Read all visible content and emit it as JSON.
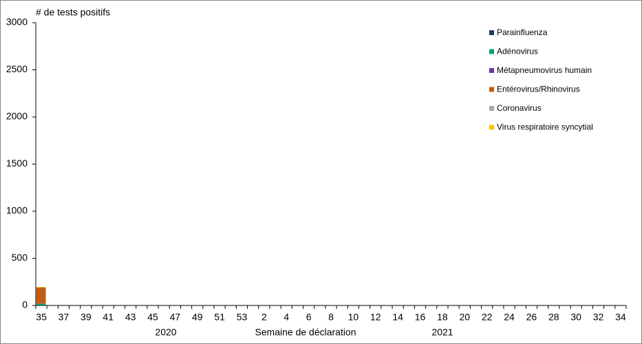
{
  "chart_data": {
    "type": "bar",
    "stacked": true,
    "y_axis_title": "# de tests positifs",
    "x_axis_title": "Semaine de déclaration",
    "x_groups": [
      "2020",
      "2021"
    ],
    "categories": [
      "35",
      null,
      "37",
      null,
      "39",
      null,
      "41",
      null,
      "43",
      null,
      "45",
      null,
      "47",
      null,
      "49",
      null,
      "51",
      null,
      "53",
      null,
      "2",
      null,
      "4",
      null,
      "6",
      null,
      "8",
      null,
      "10",
      null,
      "12",
      null,
      "14",
      null,
      "16",
      null,
      "18",
      null,
      "20",
      null,
      "22",
      null,
      "24",
      null,
      "26",
      null,
      "28",
      null,
      "30",
      null,
      "32",
      null,
      "34"
    ],
    "series": [
      {
        "name": "Parainfluenza",
        "color": "#1f3864",
        "values": [
          2,
          null,
          null,
          null,
          null,
          null,
          null,
          null,
          null,
          null,
          null,
          null,
          null,
          null,
          null,
          null,
          null,
          null,
          null,
          null,
          null,
          null,
          null,
          null,
          null,
          null,
          null,
          null,
          null,
          null,
          null,
          null,
          null,
          null,
          null,
          null,
          null,
          null,
          null,
          null,
          null,
          null,
          null,
          null,
          null,
          null,
          null,
          null,
          null,
          null,
          null,
          null,
          null
        ]
      },
      {
        "name": "Adénovirus",
        "color": "#00a070",
        "values": [
          15,
          null,
          null,
          null,
          null,
          null,
          null,
          null,
          null,
          null,
          null,
          null,
          null,
          null,
          null,
          null,
          null,
          null,
          null,
          null,
          null,
          null,
          null,
          null,
          null,
          null,
          null,
          null,
          null,
          null,
          null,
          null,
          null,
          null,
          null,
          null,
          null,
          null,
          null,
          null,
          null,
          null,
          null,
          null,
          null,
          null,
          null,
          null,
          null,
          null,
          null,
          null,
          null
        ]
      },
      {
        "name": "Métapneumovirus humain",
        "color": "#7030a0",
        "values": [
          3,
          null,
          null,
          null,
          null,
          null,
          null,
          null,
          null,
          null,
          null,
          null,
          null,
          null,
          null,
          null,
          null,
          null,
          null,
          null,
          null,
          null,
          null,
          null,
          null,
          null,
          null,
          null,
          null,
          null,
          null,
          null,
          null,
          null,
          null,
          null,
          null,
          null,
          null,
          null,
          null,
          null,
          null,
          null,
          null,
          null,
          null,
          null,
          null,
          null,
          null,
          null,
          null
        ]
      },
      {
        "name": "Entérovirus/Rhinovirus",
        "color": "#c55a11",
        "values": [
          170,
          null,
          null,
          null,
          null,
          null,
          null,
          null,
          null,
          null,
          null,
          null,
          null,
          null,
          null,
          null,
          null,
          null,
          null,
          null,
          null,
          null,
          null,
          null,
          null,
          null,
          null,
          null,
          null,
          null,
          null,
          null,
          null,
          null,
          null,
          null,
          null,
          null,
          null,
          null,
          null,
          null,
          null,
          null,
          null,
          null,
          null,
          null,
          null,
          null,
          null,
          null,
          null
        ]
      },
      {
        "name": "Coronavirus",
        "color": "#a6a6a6",
        "values": [
          2,
          null,
          null,
          null,
          null,
          null,
          null,
          null,
          null,
          null,
          null,
          null,
          null,
          null,
          null,
          null,
          null,
          null,
          null,
          null,
          null,
          null,
          null,
          null,
          null,
          null,
          null,
          null,
          null,
          null,
          null,
          null,
          null,
          null,
          null,
          null,
          null,
          null,
          null,
          null,
          null,
          null,
          null,
          null,
          null,
          null,
          null,
          null,
          null,
          null,
          null,
          null,
          null
        ]
      },
      {
        "name": "Virus respiratoire syncytial",
        "color": "#ffc000",
        "values": [
          5,
          null,
          null,
          null,
          null,
          null,
          null,
          null,
          null,
          null,
          null,
          null,
          null,
          null,
          null,
          null,
          null,
          null,
          null,
          null,
          null,
          null,
          null,
          null,
          null,
          null,
          null,
          null,
          null,
          null,
          null,
          null,
          null,
          null,
          null,
          null,
          null,
          null,
          null,
          null,
          null,
          null,
          null,
          null,
          null,
          null,
          null,
          null,
          null,
          null,
          null,
          null,
          null
        ]
      }
    ],
    "ylim": [
      0,
      3000
    ],
    "yticks": [
      0,
      500,
      1000,
      1500,
      2000,
      2500,
      3000
    ],
    "grid": false,
    "legend": "top-right"
  }
}
